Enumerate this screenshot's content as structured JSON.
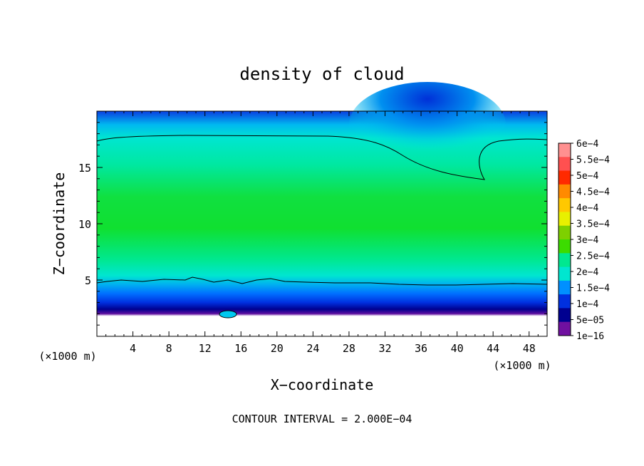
{
  "chart_data": {
    "type": "heatmap",
    "title": "density of cloud",
    "xlabel": "X−coordinate",
    "ylabel": "Z−coordinate",
    "x_unit_left": "(×1000 m)",
    "x_unit_right": "(×1000 m)",
    "xlim": [
      0,
      50
    ],
    "ylim": [
      0,
      20
    ],
    "x_ticks": [
      4,
      8,
      12,
      16,
      20,
      24,
      28,
      32,
      36,
      40,
      44,
      48
    ],
    "y_ticks": [
      5,
      10,
      15
    ],
    "x_tick_labels": [
      "4",
      "8",
      "12",
      "16",
      "20",
      "24",
      "28",
      "32",
      "36",
      "40",
      "44",
      "48"
    ],
    "y_tick_labels": [
      "5",
      "10",
      "15"
    ],
    "footer": "CONTOUR INTERVAL = 2.000E−04",
    "colorbar": {
      "labels": [
        "6e−4",
        "5.5e−4",
        "5e−4",
        "4.5e−4",
        "4e−4",
        "3.5e−4",
        "3e−4",
        "2.5e−4",
        "2e−4",
        "1.5e−4",
        "1e−4",
        "5e−05",
        "1e−16"
      ],
      "colors": [
        "#ff9090",
        "#ff5050",
        "#ff2a00",
        "#ff8a00",
        "#ffc800",
        "#e8f000",
        "#7ed000",
        "#3cdc00",
        "#00e890",
        "#00e6d0",
        "#0090ff",
        "#0030e0",
        "#000090",
        "#7010a0"
      ]
    },
    "contour_levels": [
      0.0002
    ],
    "profile": {
      "z": [
        1.2,
        1.8,
        2.5,
        3.2,
        4.0,
        4.8,
        5.5,
        7.0,
        9.0,
        10.5,
        12.0,
        14.0,
        16.0,
        17.5,
        18.5,
        19.5,
        20.0
      ],
      "density": [
        0.0,
        1e-05,
        5e-05,
        0.0001,
        0.00015,
        0.0002,
        0.00024,
        0.00028,
        0.00032,
        0.00032,
        0.0003,
        0.00028,
        0.00025,
        0.0002,
        0.00016,
        0.00012,
        0.0001
      ]
    },
    "features": [
      {
        "name": "cloud base",
        "z_min": 1.6,
        "z_max": 2.1
      },
      {
        "name": "upper 2e-4 contour",
        "z_left": 17.5,
        "z_mid": 17.8,
        "z_dip_x": 42.5,
        "z_dip": 14.0
      },
      {
        "name": "lower 2e-4 contour",
        "z": 4.9
      }
    ]
  }
}
